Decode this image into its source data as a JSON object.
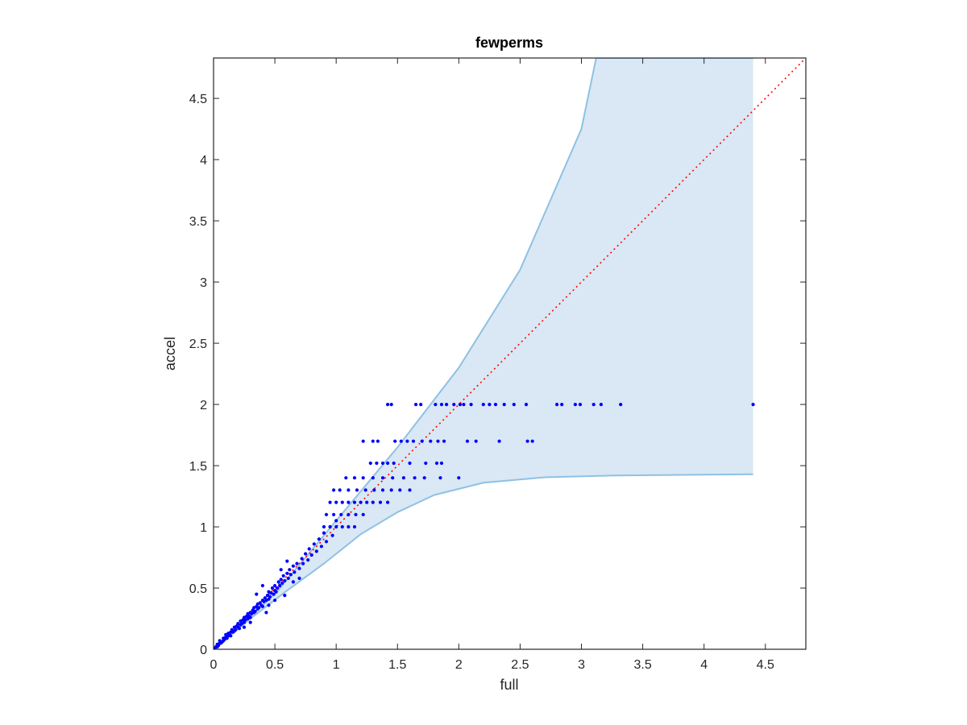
{
  "chart_data": {
    "type": "scatter",
    "title": "fewperms",
    "xlabel": "full",
    "ylabel": "accel",
    "xlim": [
      0,
      4.83
    ],
    "ylim": [
      0,
      4.83
    ],
    "xticks": [
      0,
      0.5,
      1,
      1.5,
      2,
      2.5,
      3,
      3.5,
      4,
      4.5
    ],
    "yticks": [
      0,
      0.5,
      1,
      1.5,
      2,
      2.5,
      3,
      3.5,
      4,
      4.5
    ],
    "xtick_labels": [
      "0",
      "0.5",
      "1",
      "1.5",
      "2",
      "2.5",
      "3",
      "3.5",
      "4",
      "4.5"
    ],
    "ytick_labels": [
      "0",
      "0.5",
      "1",
      "1.5",
      "2",
      "2.5",
      "3",
      "3.5",
      "4",
      "4.5"
    ],
    "grid": false,
    "colors": {
      "points": "#0000ff",
      "band_fill": "#d9e8f4",
      "band_edge": "#8fc1e3",
      "diagonal": "#ff0000",
      "axes": "#262626"
    },
    "band": {
      "upper": [
        [
          0,
          0
        ],
        [
          0.5,
          0.45
        ],
        [
          1,
          1.05
        ],
        [
          1.5,
          1.65
        ],
        [
          2,
          2.3
        ],
        [
          2.5,
          3.1
        ],
        [
          3,
          4.25
        ],
        [
          3.12,
          4.83
        ],
        [
          4.4,
          4.83
        ]
      ],
      "lower": [
        [
          0,
          0
        ],
        [
          0.3,
          0.25
        ],
        [
          0.6,
          0.48
        ],
        [
          0.9,
          0.7
        ],
        [
          1.2,
          0.94
        ],
        [
          1.5,
          1.12
        ],
        [
          1.8,
          1.26
        ],
        [
          2.2,
          1.36
        ],
        [
          2.7,
          1.405
        ],
        [
          3.3,
          1.42
        ],
        [
          4.4,
          1.43
        ]
      ]
    },
    "diagonal": {
      "from": [
        0,
        0
      ],
      "to": [
        4.83,
        4.83
      ],
      "style": "dotted"
    },
    "points": [
      [
        0.01,
        0.01
      ],
      [
        0.02,
        0.02
      ],
      [
        0.03,
        0.02
      ],
      [
        0.03,
        0.04
      ],
      [
        0.04,
        0.03
      ],
      [
        0.05,
        0.05
      ],
      [
        0.05,
        0.07
      ],
      [
        0.06,
        0.05
      ],
      [
        0.07,
        0.06
      ],
      [
        0.08,
        0.07
      ],
      [
        0.08,
        0.09
      ],
      [
        0.09,
        0.08
      ],
      [
        0.1,
        0.1
      ],
      [
        0.1,
        0.12
      ],
      [
        0.11,
        0.09
      ],
      [
        0.12,
        0.11
      ],
      [
        0.12,
        0.13
      ],
      [
        0.13,
        0.12
      ],
      [
        0.14,
        0.14
      ],
      [
        0.14,
        0.11
      ],
      [
        0.15,
        0.16
      ],
      [
        0.16,
        0.14
      ],
      [
        0.17,
        0.15
      ],
      [
        0.17,
        0.18
      ],
      [
        0.18,
        0.16
      ],
      [
        0.19,
        0.19
      ],
      [
        0.2,
        0.18
      ],
      [
        0.2,
        0.21
      ],
      [
        0.21,
        0.17
      ],
      [
        0.22,
        0.2
      ],
      [
        0.22,
        0.23
      ],
      [
        0.23,
        0.21
      ],
      [
        0.24,
        0.24
      ],
      [
        0.25,
        0.22
      ],
      [
        0.25,
        0.26
      ],
      [
        0.26,
        0.24
      ],
      [
        0.27,
        0.27
      ],
      [
        0.28,
        0.25
      ],
      [
        0.28,
        0.29
      ],
      [
        0.29,
        0.27
      ],
      [
        0.3,
        0.3
      ],
      [
        0.3,
        0.26
      ],
      [
        0.31,
        0.29
      ],
      [
        0.32,
        0.32
      ],
      [
        0.33,
        0.3
      ],
      [
        0.33,
        0.34
      ],
      [
        0.34,
        0.31
      ],
      [
        0.35,
        0.35
      ],
      [
        0.36,
        0.33
      ],
      [
        0.36,
        0.37
      ],
      [
        0.37,
        0.34
      ],
      [
        0.38,
        0.38
      ],
      [
        0.39,
        0.36
      ],
      [
        0.4,
        0.4
      ],
      [
        0.4,
        0.35
      ],
      [
        0.41,
        0.39
      ],
      [
        0.42,
        0.42
      ],
      [
        0.43,
        0.4
      ],
      [
        0.44,
        0.44
      ],
      [
        0.45,
        0.41
      ],
      [
        0.45,
        0.47
      ],
      [
        0.46,
        0.43
      ],
      [
        0.47,
        0.46
      ],
      [
        0.48,
        0.5
      ],
      [
        0.49,
        0.45
      ],
      [
        0.5,
        0.48
      ],
      [
        0.5,
        0.52
      ],
      [
        0.51,
        0.47
      ],
      [
        0.52,
        0.5
      ],
      [
        0.53,
        0.55
      ],
      [
        0.54,
        0.52
      ],
      [
        0.55,
        0.57
      ],
      [
        0.56,
        0.54
      ],
      [
        0.57,
        0.6
      ],
      [
        0.58,
        0.56
      ],
      [
        0.6,
        0.62
      ],
      [
        0.61,
        0.58
      ],
      [
        0.62,
        0.65
      ],
      [
        0.63,
        0.61
      ],
      [
        0.65,
        0.68
      ],
      [
        0.66,
        0.63
      ],
      [
        0.68,
        0.7
      ],
      [
        0.7,
        0.66
      ],
      [
        0.72,
        0.74
      ],
      [
        0.73,
        0.7
      ],
      [
        0.75,
        0.78
      ],
      [
        0.77,
        0.73
      ],
      [
        0.78,
        0.82
      ],
      [
        0.8,
        0.77
      ],
      [
        0.82,
        0.86
      ],
      [
        0.84,
        0.8
      ],
      [
        0.86,
        0.9
      ],
      [
        0.88,
        0.84
      ],
      [
        0.9,
        0.95
      ],
      [
        0.92,
        0.88
      ],
      [
        0.95,
        1.0
      ],
      [
        0.97,
        0.93
      ],
      [
        1.0,
        1.05
      ],
      [
        0.35,
        0.45
      ],
      [
        0.4,
        0.52
      ],
      [
        0.55,
        0.65
      ],
      [
        0.6,
        0.72
      ],
      [
        0.25,
        0.18
      ],
      [
        0.3,
        0.22
      ],
      [
        0.45,
        0.36
      ],
      [
        0.5,
        0.4
      ],
      [
        0.65,
        0.55
      ],
      [
        0.7,
        0.58
      ],
      [
        0.58,
        0.44
      ],
      [
        0.43,
        0.3
      ],
      [
        0.9,
        1.0
      ],
      [
        0.95,
        1.0
      ],
      [
        1.0,
        1.0
      ],
      [
        1.05,
        1.0
      ],
      [
        1.1,
        1.0
      ],
      [
        1.15,
        1.0
      ],
      [
        0.92,
        1.1
      ],
      [
        0.98,
        1.1
      ],
      [
        1.04,
        1.1
      ],
      [
        1.1,
        1.1
      ],
      [
        1.16,
        1.1
      ],
      [
        1.22,
        1.1
      ],
      [
        0.95,
        1.2
      ],
      [
        1.0,
        1.2
      ],
      [
        1.05,
        1.2
      ],
      [
        1.1,
        1.2
      ],
      [
        1.15,
        1.2
      ],
      [
        1.2,
        1.2
      ],
      [
        1.25,
        1.2
      ],
      [
        1.3,
        1.2
      ],
      [
        1.36,
        1.2
      ],
      [
        1.42,
        1.2
      ],
      [
        0.98,
        1.3
      ],
      [
        1.03,
        1.3
      ],
      [
        1.1,
        1.3
      ],
      [
        1.17,
        1.3
      ],
      [
        1.24,
        1.3
      ],
      [
        1.31,
        1.3
      ],
      [
        1.38,
        1.3
      ],
      [
        1.45,
        1.3
      ],
      [
        1.52,
        1.3
      ],
      [
        1.6,
        1.3
      ],
      [
        1.08,
        1.4
      ],
      [
        1.15,
        1.4
      ],
      [
        1.22,
        1.4
      ],
      [
        1.3,
        1.4
      ],
      [
        1.38,
        1.4
      ],
      [
        1.46,
        1.4
      ],
      [
        1.55,
        1.4
      ],
      [
        1.64,
        1.4
      ],
      [
        1.72,
        1.4
      ],
      [
        1.85,
        1.4
      ],
      [
        2.0,
        1.4
      ],
      [
        1.28,
        1.52
      ],
      [
        1.33,
        1.52
      ],
      [
        1.38,
        1.52
      ],
      [
        1.42,
        1.52
      ],
      [
        1.47,
        1.52
      ],
      [
        1.6,
        1.52
      ],
      [
        1.73,
        1.52
      ],
      [
        1.82,
        1.52
      ],
      [
        1.86,
        1.52
      ],
      [
        1.22,
        1.7
      ],
      [
        1.3,
        1.7
      ],
      [
        1.34,
        1.7
      ],
      [
        1.48,
        1.7
      ],
      [
        1.53,
        1.7
      ],
      [
        1.58,
        1.7
      ],
      [
        1.63,
        1.7
      ],
      [
        1.7,
        1.7
      ],
      [
        1.77,
        1.7
      ],
      [
        1.83,
        1.7
      ],
      [
        1.88,
        1.7
      ],
      [
        2.07,
        1.7
      ],
      [
        2.14,
        1.7
      ],
      [
        2.33,
        1.7
      ],
      [
        2.56,
        1.7
      ],
      [
        2.6,
        1.7
      ],
      [
        1.42,
        2.0
      ],
      [
        1.45,
        2.0
      ],
      [
        1.65,
        2.0
      ],
      [
        1.69,
        2.0
      ],
      [
        1.81,
        2.0
      ],
      [
        1.86,
        2.0
      ],
      [
        1.9,
        2.0
      ],
      [
        1.96,
        2.0
      ],
      [
        2.01,
        2.0
      ],
      [
        2.04,
        2.0
      ],
      [
        2.1,
        2.0
      ],
      [
        2.2,
        2.0
      ],
      [
        2.25,
        2.0
      ],
      [
        2.3,
        2.0
      ],
      [
        2.37,
        2.0
      ],
      [
        2.45,
        2.0
      ],
      [
        2.55,
        2.0
      ],
      [
        2.8,
        2.0
      ],
      [
        2.84,
        2.0
      ],
      [
        2.95,
        2.0
      ],
      [
        2.99,
        2.0
      ],
      [
        3.1,
        2.0
      ],
      [
        3.16,
        2.0
      ],
      [
        3.32,
        2.0
      ],
      [
        4.4,
        2.0
      ]
    ]
  }
}
